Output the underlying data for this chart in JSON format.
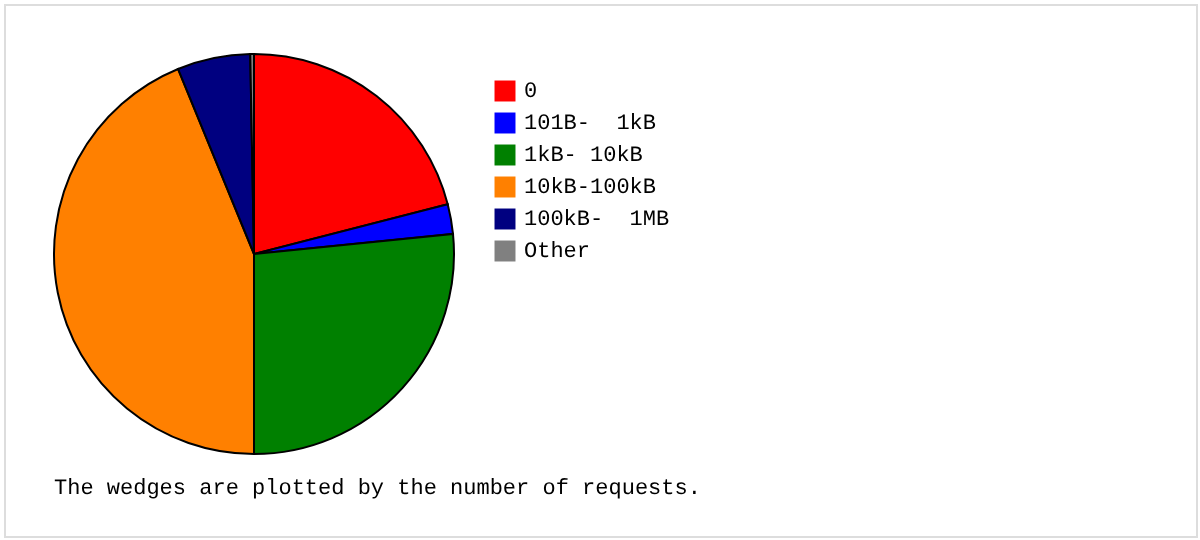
{
  "chart_data": {
    "type": "pie",
    "categories": [
      "0",
      "101B-  1kB",
      "1kB- 10kB",
      "10kB-100kB",
      "100kB-  1MB",
      "Other"
    ],
    "values": [
      21.0,
      2.4,
      26.6,
      43.8,
      5.9,
      0.3
    ],
    "colors": [
      "#ff0000",
      "#0000ff",
      "#008000",
      "#ff8000",
      "#000080",
      "#808080"
    ],
    "legend": "right",
    "annotations": [
      "The wedges are plotted by the number of requests."
    ]
  }
}
